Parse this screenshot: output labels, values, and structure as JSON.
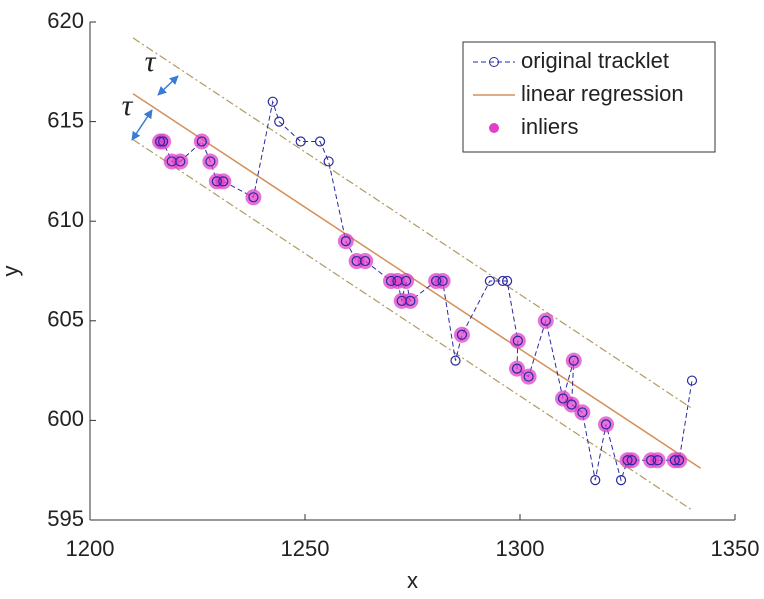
{
  "chart_data": {
    "type": "line",
    "xlabel": "x",
    "ylabel": "y",
    "xlim": [
      1200,
      1350
    ],
    "ylim": [
      595,
      620
    ],
    "xticks": [
      1200,
      1250,
      1300,
      1350
    ],
    "yticks": [
      595,
      600,
      605,
      610,
      615,
      620
    ],
    "legend": "upper right",
    "series": [
      {
        "name": "original tracklet",
        "color": "#2a2aa0",
        "kind": "dashed-circles",
        "x": [
          1216.3,
          1217,
          1219,
          1221,
          1226,
          1228,
          1229.5,
          1231,
          1238,
          1242.5,
          1244,
          1249,
          1253.5,
          1255.5,
          1259.5,
          1262,
          1264,
          1270,
          1271.5,
          1272.5,
          1273.5,
          1274.5,
          1280.5,
          1282,
          1285,
          1286.5,
          1293,
          1296,
          1297,
          1299.5,
          1299.3,
          1302,
          1306,
          1310,
          1312.5,
          1312,
          1314.5,
          1317.5,
          1320,
          1323.5,
          1325,
          1326,
          1330.5,
          1332,
          1336,
          1337,
          1340
        ],
        "y": [
          614,
          614,
          613,
          613,
          614,
          613,
          612,
          612,
          611.2,
          616,
          615,
          614,
          614,
          613,
          609,
          608,
          608,
          607,
          607,
          606,
          607,
          606,
          607,
          607,
          603,
          604.3,
          607,
          607,
          607,
          604,
          602.6,
          602.2,
          605,
          601.1,
          603,
          600.8,
          600.4,
          597,
          599.8,
          597,
          598,
          598,
          598,
          598,
          598,
          598,
          602
        ]
      },
      {
        "name": "linear regression",
        "color": "#d4905a",
        "kind": "line",
        "x": [
          1210,
          1342
        ],
        "y": [
          616.4,
          597.6
        ]
      },
      {
        "name": "inliers",
        "color": "#e040c8",
        "kind": "dots",
        "x": [
          1216.3,
          1217,
          1219,
          1221,
          1226,
          1228,
          1229.5,
          1231,
          1238,
          1259.5,
          1262,
          1264,
          1270,
          1271.5,
          1272.5,
          1273.5,
          1274.5,
          1280.5,
          1282,
          1286.5,
          1299.5,
          1299.3,
          1302,
          1306,
          1310,
          1312.5,
          1312,
          1314.5,
          1320,
          1325,
          1326,
          1330.5,
          1332,
          1336,
          1337
        ],
        "y": [
          614,
          614,
          613,
          613,
          614,
          613,
          612,
          612,
          611.2,
          609,
          608,
          608,
          607,
          607,
          606,
          607,
          606,
          607,
          607,
          604.3,
          604,
          602.6,
          602.2,
          605,
          601.1,
          603,
          600.8,
          600.4,
          599.8,
          598,
          598,
          598,
          598,
          598,
          598
        ]
      }
    ],
    "bands": {
      "color": "#b09a60",
      "upper": {
        "x": [
          1210,
          1340
        ],
        "y": [
          619.2,
          600.6
        ]
      },
      "lower": {
        "x": [
          1210,
          1340
        ],
        "y": [
          614.1,
          595.5
        ]
      }
    },
    "annotations": [
      "τ",
      "τ"
    ]
  }
}
